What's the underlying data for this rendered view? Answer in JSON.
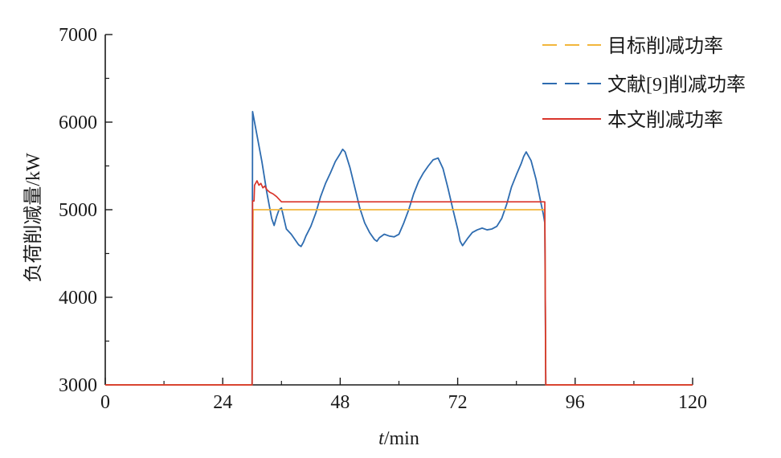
{
  "chart_data": {
    "type": "line",
    "title": "",
    "xlabel": {
      "italic": "t",
      "rest": "/min"
    },
    "ylabel": "负荷削减量/kW",
    "xlim": [
      0,
      120
    ],
    "ylim": [
      3000,
      7000
    ],
    "x_ticks": [
      0,
      24,
      48,
      72,
      96,
      120
    ],
    "x_minor_ticks": [
      12,
      36,
      60,
      84,
      108
    ],
    "y_ticks": [
      3000,
      4000,
      5000,
      6000,
      7000
    ],
    "y_minor_ticks": [
      3500,
      4500,
      5500,
      6500
    ],
    "grid": false,
    "legend_position": "top-right",
    "series": [
      {
        "name": "目标削减功率",
        "color": "#f2b63c",
        "legend_style": "dashed",
        "points": [
          [
            0,
            3000
          ],
          [
            30,
            3000
          ],
          [
            30,
            3000
          ],
          [
            30.2,
            5000
          ],
          [
            89.8,
            5000
          ],
          [
            90,
            3000
          ],
          [
            120,
            3000
          ]
        ]
      },
      {
        "name": "文献[9]削减功率",
        "color": "#2e6cb0",
        "legend_style": "dashed",
        "points": [
          [
            30,
            3000
          ],
          [
            30.1,
            6120
          ],
          [
            31,
            5850
          ],
          [
            32,
            5550
          ],
          [
            33,
            5200
          ],
          [
            34,
            4900
          ],
          [
            34.5,
            4820
          ],
          [
            35,
            4920
          ],
          [
            35.5,
            5000
          ],
          [
            36,
            5020
          ],
          [
            36.5,
            4900
          ],
          [
            37,
            4780
          ],
          [
            38,
            4720
          ],
          [
            39,
            4640
          ],
          [
            39.5,
            4600
          ],
          [
            40,
            4580
          ],
          [
            40.5,
            4630
          ],
          [
            41,
            4700
          ],
          [
            42,
            4810
          ],
          [
            43,
            4960
          ],
          [
            44,
            5150
          ],
          [
            45,
            5300
          ],
          [
            46,
            5420
          ],
          [
            47,
            5550
          ],
          [
            48,
            5640
          ],
          [
            48.5,
            5690
          ],
          [
            49,
            5660
          ],
          [
            50,
            5480
          ],
          [
            51,
            5250
          ],
          [
            52,
            5020
          ],
          [
            53,
            4850
          ],
          [
            54,
            4740
          ],
          [
            55,
            4660
          ],
          [
            55.5,
            4640
          ],
          [
            56,
            4680
          ],
          [
            57,
            4720
          ],
          [
            58,
            4700
          ],
          [
            59,
            4690
          ],
          [
            60,
            4720
          ],
          [
            61,
            4850
          ],
          [
            62,
            5000
          ],
          [
            63,
            5180
          ],
          [
            64,
            5320
          ],
          [
            65,
            5420
          ],
          [
            66,
            5500
          ],
          [
            67,
            5570
          ],
          [
            68,
            5590
          ],
          [
            69,
            5470
          ],
          [
            70,
            5250
          ],
          [
            71,
            5010
          ],
          [
            72,
            4780
          ],
          [
            72.5,
            4640
          ],
          [
            73,
            4590
          ],
          [
            74,
            4670
          ],
          [
            75,
            4740
          ],
          [
            76,
            4770
          ],
          [
            77,
            4790
          ],
          [
            78,
            4770
          ],
          [
            79,
            4780
          ],
          [
            80,
            4810
          ],
          [
            81,
            4900
          ],
          [
            82,
            5060
          ],
          [
            83,
            5260
          ],
          [
            84,
            5400
          ],
          [
            85,
            5530
          ],
          [
            85.5,
            5610
          ],
          [
            86,
            5660
          ],
          [
            87,
            5560
          ],
          [
            88,
            5350
          ],
          [
            89,
            5080
          ],
          [
            89.5,
            4950
          ],
          [
            89.8,
            4850
          ],
          [
            90,
            3000
          ]
        ]
      },
      {
        "name": "本文削减功率",
        "color": "#d9352b",
        "legend_style": "solid",
        "points": [
          [
            0,
            3000
          ],
          [
            30,
            3000
          ],
          [
            30.1,
            5100
          ],
          [
            30.4,
            5100
          ],
          [
            30.5,
            5280
          ],
          [
            31,
            5330
          ],
          [
            31.4,
            5280
          ],
          [
            31.8,
            5300
          ],
          [
            32.2,
            5250
          ],
          [
            32.6,
            5270
          ],
          [
            33,
            5230
          ],
          [
            33.6,
            5200
          ],
          [
            34.3,
            5180
          ],
          [
            35,
            5150
          ],
          [
            35.5,
            5120
          ],
          [
            36,
            5090
          ],
          [
            89.8,
            5090
          ],
          [
            90,
            3000
          ],
          [
            120,
            3000
          ]
        ]
      }
    ]
  }
}
